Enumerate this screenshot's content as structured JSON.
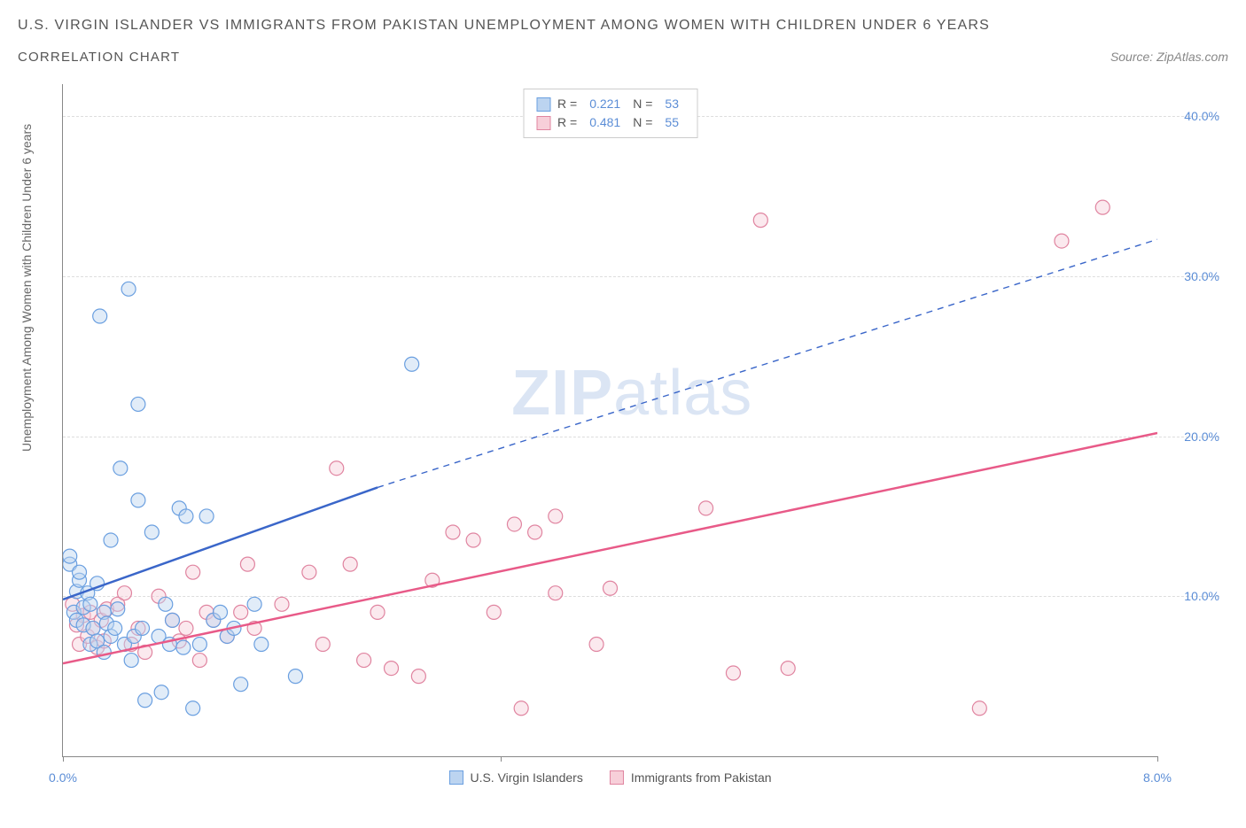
{
  "title_line1": "U.S. VIRGIN ISLANDER VS IMMIGRANTS FROM PAKISTAN UNEMPLOYMENT AMONG WOMEN WITH CHILDREN UNDER 6 YEARS",
  "title_line2": "CORRELATION CHART",
  "source_label": "Source: ZipAtlas.com",
  "y_axis_label": "Unemployment Among Women with Children Under 6 years",
  "watermark_bold": "ZIP",
  "watermark_rest": "atlas",
  "legend_top": {
    "rows": [
      {
        "swatch_fill": "#bcd4f0",
        "swatch_stroke": "#6a9fe0",
        "r_label": "R =",
        "r_value": "0.221",
        "n_label": "N =",
        "n_value": "53"
      },
      {
        "swatch_fill": "#f7cfd9",
        "swatch_stroke": "#e084a0",
        "r_label": "R =",
        "r_value": "0.481",
        "n_label": "N =",
        "n_value": "55"
      }
    ]
  },
  "legend_bottom": {
    "items": [
      {
        "swatch_fill": "#bcd4f0",
        "swatch_stroke": "#6a9fe0",
        "label": "U.S. Virgin Islanders"
      },
      {
        "swatch_fill": "#f7cfd9",
        "swatch_stroke": "#e084a0",
        "label": "Immigrants from Pakistan"
      }
    ]
  },
  "axes": {
    "x_min": 0.0,
    "x_max": 8.0,
    "y_min": 0.0,
    "y_max": 42.0,
    "x_ticks": [
      {
        "value": 0.0,
        "label": "0.0%"
      },
      {
        "value": 8.0,
        "label": "8.0%"
      }
    ],
    "y_ticks": [
      {
        "value": 10.0,
        "label": "10.0%"
      },
      {
        "value": 20.0,
        "label": "20.0%"
      },
      {
        "value": 30.0,
        "label": "30.0%"
      },
      {
        "value": 40.0,
        "label": "40.0%"
      }
    ],
    "x_tick_marks": [
      0.0,
      3.2,
      8.0
    ]
  },
  "series": {
    "blue": {
      "fill": "#bcd4f0",
      "stroke": "#6a9fe0",
      "fill_opacity": 0.45,
      "line_color": "#3a66c9",
      "solid_line": {
        "x1": 0.0,
        "y1": 9.8,
        "x2": 2.3,
        "y2": 16.8
      },
      "dashed_line": {
        "x1": 2.3,
        "y1": 16.8,
        "x2": 8.0,
        "y2": 32.3
      },
      "points": [
        [
          0.05,
          12.0
        ],
        [
          0.05,
          12.5
        ],
        [
          0.08,
          9.0
        ],
        [
          0.1,
          8.5
        ],
        [
          0.1,
          10.3
        ],
        [
          0.12,
          11.0
        ],
        [
          0.12,
          11.5
        ],
        [
          0.15,
          8.2
        ],
        [
          0.15,
          9.3
        ],
        [
          0.18,
          10.2
        ],
        [
          0.2,
          7.0
        ],
        [
          0.2,
          9.5
        ],
        [
          0.22,
          8.0
        ],
        [
          0.25,
          7.2
        ],
        [
          0.25,
          10.8
        ],
        [
          0.27,
          27.5
        ],
        [
          0.3,
          6.5
        ],
        [
          0.3,
          9.0
        ],
        [
          0.32,
          8.3
        ],
        [
          0.35,
          7.5
        ],
        [
          0.35,
          13.5
        ],
        [
          0.38,
          8.0
        ],
        [
          0.4,
          9.2
        ],
        [
          0.42,
          18.0
        ],
        [
          0.45,
          7.0
        ],
        [
          0.48,
          29.2
        ],
        [
          0.5,
          6.0
        ],
        [
          0.52,
          7.5
        ],
        [
          0.55,
          16.0
        ],
        [
          0.55,
          22.0
        ],
        [
          0.58,
          8.0
        ],
        [
          0.6,
          3.5
        ],
        [
          0.65,
          14.0
        ],
        [
          0.7,
          7.5
        ],
        [
          0.72,
          4.0
        ],
        [
          0.75,
          9.5
        ],
        [
          0.78,
          7.0
        ],
        [
          0.8,
          8.5
        ],
        [
          0.85,
          15.5
        ],
        [
          0.88,
          6.8
        ],
        [
          0.9,
          15.0
        ],
        [
          0.95,
          3.0
        ],
        [
          1.0,
          7.0
        ],
        [
          1.05,
          15.0
        ],
        [
          1.1,
          8.5
        ],
        [
          1.15,
          9.0
        ],
        [
          1.2,
          7.5
        ],
        [
          1.25,
          8.0
        ],
        [
          1.3,
          4.5
        ],
        [
          1.4,
          9.5
        ],
        [
          1.45,
          7.0
        ],
        [
          1.7,
          5.0
        ],
        [
          2.55,
          24.5
        ]
      ]
    },
    "pink": {
      "fill": "#f7cfd9",
      "stroke": "#e084a0",
      "fill_opacity": 0.45,
      "line_color": "#e85a88",
      "solid_line": {
        "x1": 0.0,
        "y1": 5.8,
        "x2": 8.0,
        "y2": 20.2
      },
      "points": [
        [
          0.07,
          9.5
        ],
        [
          0.1,
          8.2
        ],
        [
          0.12,
          7.0
        ],
        [
          0.15,
          8.8
        ],
        [
          0.18,
          7.5
        ],
        [
          0.2,
          9.0
        ],
        [
          0.22,
          8.0
        ],
        [
          0.25,
          6.8
        ],
        [
          0.28,
          8.5
        ],
        [
          0.3,
          7.2
        ],
        [
          0.32,
          9.2
        ],
        [
          0.4,
          9.5
        ],
        [
          0.45,
          10.2
        ],
        [
          0.5,
          7.0
        ],
        [
          0.55,
          8.0
        ],
        [
          0.6,
          6.5
        ],
        [
          0.7,
          10.0
        ],
        [
          0.8,
          8.5
        ],
        [
          0.85,
          7.2
        ],
        [
          0.9,
          8.0
        ],
        [
          0.95,
          11.5
        ],
        [
          1.0,
          6.0
        ],
        [
          1.05,
          9.0
        ],
        [
          1.1,
          8.5
        ],
        [
          1.2,
          7.5
        ],
        [
          1.3,
          9.0
        ],
        [
          1.35,
          12.0
        ],
        [
          1.4,
          8.0
        ],
        [
          1.6,
          9.5
        ],
        [
          1.8,
          11.5
        ],
        [
          1.9,
          7.0
        ],
        [
          2.0,
          18.0
        ],
        [
          2.1,
          12.0
        ],
        [
          2.2,
          6.0
        ],
        [
          2.3,
          9.0
        ],
        [
          2.4,
          5.5
        ],
        [
          2.6,
          5.0
        ],
        [
          2.7,
          11.0
        ],
        [
          2.85,
          14.0
        ],
        [
          3.0,
          13.5
        ],
        [
          3.15,
          9.0
        ],
        [
          3.3,
          14.5
        ],
        [
          3.35,
          3.0
        ],
        [
          3.45,
          14.0
        ],
        [
          3.6,
          10.2
        ],
        [
          3.6,
          15.0
        ],
        [
          3.9,
          7.0
        ],
        [
          4.0,
          10.5
        ],
        [
          4.7,
          15.5
        ],
        [
          4.9,
          5.2
        ],
        [
          5.1,
          33.5
        ],
        [
          5.3,
          5.5
        ],
        [
          6.7,
          3.0
        ],
        [
          7.3,
          32.2
        ],
        [
          7.6,
          34.3
        ]
      ]
    }
  },
  "marker_radius": 8
}
